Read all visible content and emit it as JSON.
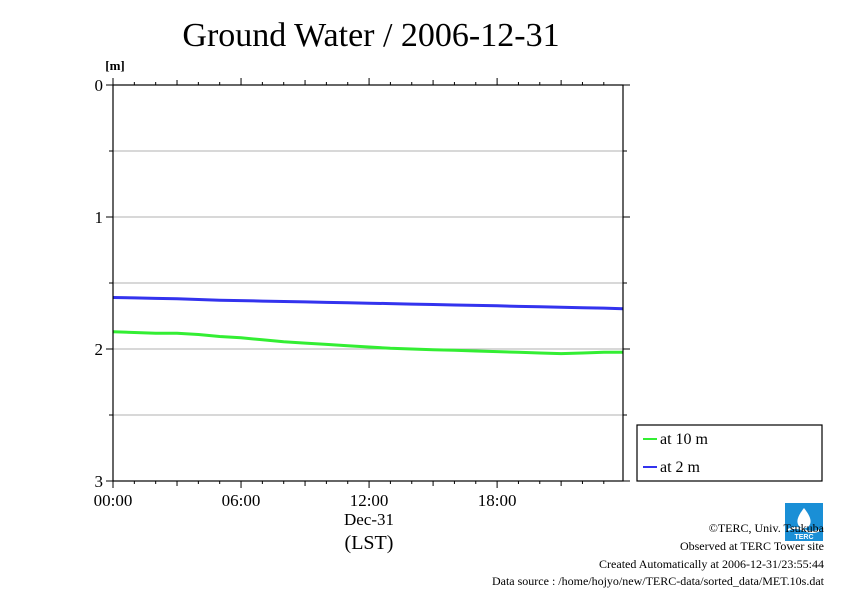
{
  "chart_data": {
    "type": "line",
    "title": "Ground Water / 2006-12-31",
    "ylabel": "[m]",
    "y_inverted": true,
    "ylim": [
      0,
      3
    ],
    "y_ticks": [
      "0",
      "1",
      "2",
      "3"
    ],
    "y_minor_grid": [
      0.5,
      1,
      1.5,
      2,
      2.5
    ],
    "x_ticks": [
      "00:00",
      "06:00",
      "12:00",
      "18:00"
    ],
    "xlim_hours": [
      0,
      23.9
    ],
    "x_date_label": "Dec-31",
    "x_unit_label": "(LST)",
    "grid": true,
    "legend_position": "right",
    "series": [
      {
        "name": "at 10 m",
        "color": "#33ee33",
        "x": [
          0,
          1,
          2,
          3,
          4,
          5,
          6,
          7,
          8,
          9,
          10,
          11,
          12,
          13,
          14,
          15,
          16,
          17,
          18,
          19,
          20,
          21,
          22,
          23,
          23.9
        ],
        "values": [
          1.87,
          1.875,
          1.88,
          1.88,
          1.89,
          1.905,
          1.915,
          1.93,
          1.945,
          1.955,
          1.965,
          1.975,
          1.985,
          1.995,
          2.0,
          2.005,
          2.01,
          2.015,
          2.02,
          2.025,
          2.03,
          2.035,
          2.03,
          2.025,
          2.025
        ]
      },
      {
        "name": "at 2 m",
        "color": "#3333ee",
        "x": [
          0,
          1,
          2,
          3,
          4,
          5,
          6,
          7,
          8,
          9,
          10,
          11,
          12,
          13,
          14,
          15,
          16,
          17,
          18,
          19,
          20,
          21,
          22,
          23,
          23.9
        ],
        "values": [
          1.61,
          1.613,
          1.617,
          1.62,
          1.625,
          1.63,
          1.633,
          1.637,
          1.64,
          1.643,
          1.647,
          1.65,
          1.653,
          1.656,
          1.66,
          1.663,
          1.667,
          1.67,
          1.673,
          1.677,
          1.68,
          1.683,
          1.687,
          1.69,
          1.695
        ]
      }
    ]
  },
  "footer": {
    "copyright": "©TERC, Univ. Tsukuba",
    "observed": "Observed at TERC Tower site",
    "created": "Created Automatically at 2006-12-31/23:55:44",
    "source": "Data source : /home/hojyo/new/TERC-data/sorted_data/MET.10s.dat"
  },
  "logo": {
    "text": "TERC",
    "color": "#1a8fd6"
  }
}
